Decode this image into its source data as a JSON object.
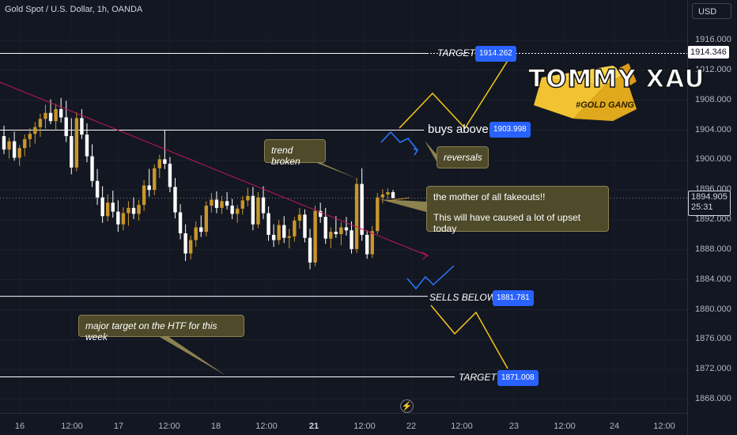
{
  "header": {
    "title": "Gold Spot / U.S. Dollar, 1h, OANDA",
    "currency": "USD"
  },
  "axes": {
    "y_ticks": [
      "1916.000",
      "1912.000",
      "1908.000",
      "1904.000",
      "1900.000",
      "1896.000",
      "1892.000",
      "1888.000",
      "1884.000",
      "1880.000",
      "1876.000",
      "1872.000",
      "1868.000"
    ],
    "x_ticks": [
      "16",
      "12:00",
      "17",
      "12:00",
      "18",
      "12:00",
      "21",
      "12:00",
      "22",
      "12:00",
      "23",
      "12:00",
      "24",
      "12:00"
    ],
    "bold_x_tick": "21"
  },
  "price_tags": {
    "level": "1914.346",
    "current": "1894.905",
    "countdown": "25:31"
  },
  "levels": {
    "target_top": {
      "label": "TARGET",
      "value": "1914.262"
    },
    "buys_above": {
      "label": "buys above",
      "value": "1903.998"
    },
    "sells_below": {
      "label": "SELLS BELOW",
      "value": "1881.781"
    },
    "target_bottom": {
      "label": "TARGET",
      "value": "1871.008"
    }
  },
  "notes": {
    "trend_broken": "trend broken",
    "reversals": "reversals",
    "fakeout_line1": "the mother of all fakeouts!!",
    "fakeout_line2": "This will have caused a lot of upset today",
    "major_target": "major target on the HTF for this week"
  },
  "logo": {
    "title": "TOMMY XAU",
    "subtitle": "#GOLD GANG"
  },
  "colors": {
    "up": "#c8962d",
    "down": "#ffffff",
    "trendline": "#c2185b",
    "forecast": "#f5c518",
    "reversal": "#2979ff",
    "badge": "#2962ff"
  },
  "icons": {
    "flash": "lightning-icon"
  },
  "chart_data": {
    "type": "candlestick",
    "symbol": "XAUUSD",
    "timeframe": "1h",
    "ylim": [
      1866,
      1918
    ],
    "candles": [
      [
        1903.2,
        1904.6,
        1900.8,
        1901.4
      ],
      [
        1901.4,
        1903.0,
        1900.2,
        1902.5
      ],
      [
        1902.5,
        1903.8,
        1899.9,
        1900.3
      ],
      [
        1900.3,
        1902.0,
        1899.2,
        1901.6
      ],
      [
        1901.6,
        1903.4,
        1900.5,
        1902.8
      ],
      [
        1902.8,
        1904.3,
        1901.7,
        1903.5
      ],
      [
        1903.5,
        1905.1,
        1902.2,
        1904.4
      ],
      [
        1904.4,
        1906.2,
        1903.1,
        1905.5
      ],
      [
        1905.5,
        1907.4,
        1904.2,
        1906.3
      ],
      [
        1906.3,
        1908.1,
        1904.8,
        1905.2
      ],
      [
        1905.2,
        1907.5,
        1903.9,
        1906.8
      ],
      [
        1906.8,
        1908.3,
        1905.0,
        1905.7
      ],
      [
        1905.7,
        1907.9,
        1902.4,
        1903.2
      ],
      [
        1903.2,
        1905.6,
        1898.1,
        1899.0
      ],
      [
        1899.0,
        1906.4,
        1898.5,
        1905.6
      ],
      [
        1905.6,
        1906.8,
        1902.8,
        1903.4
      ],
      [
        1903.4,
        1904.9,
        1899.7,
        1900.5
      ],
      [
        1900.5,
        1902.1,
        1896.4,
        1897.2
      ],
      [
        1897.2,
        1898.8,
        1894.0,
        1895.0
      ],
      [
        1895.0,
        1896.5,
        1891.6,
        1892.5
      ],
      [
        1892.5,
        1895.4,
        1891.8,
        1894.3
      ],
      [
        1894.3,
        1895.9,
        1892.3,
        1893.1
      ],
      [
        1893.1,
        1894.6,
        1890.4,
        1891.4
      ],
      [
        1891.4,
        1893.7,
        1890.6,
        1892.9
      ],
      [
        1892.9,
        1894.5,
        1891.2,
        1893.6
      ],
      [
        1893.6,
        1895.0,
        1892.1,
        1892.8
      ],
      [
        1892.8,
        1894.7,
        1891.9,
        1894.0
      ],
      [
        1894.0,
        1897.3,
        1893.2,
        1896.6
      ],
      [
        1896.6,
        1898.8,
        1895.1,
        1896.0
      ],
      [
        1896.0,
        1899.4,
        1895.3,
        1898.9
      ],
      [
        1898.9,
        1900.7,
        1897.6,
        1900.1
      ],
      [
        1900.1,
        1904.0,
        1898.8,
        1899.5
      ],
      [
        1899.5,
        1900.4,
        1895.7,
        1896.4
      ],
      [
        1896.4,
        1897.6,
        1892.2,
        1893.0
      ],
      [
        1893.0,
        1894.1,
        1889.4,
        1890.2
      ],
      [
        1890.2,
        1891.4,
        1886.5,
        1887.5
      ],
      [
        1887.5,
        1889.9,
        1886.7,
        1889.3
      ],
      [
        1889.3,
        1891.8,
        1888.4,
        1891.0
      ],
      [
        1891.0,
        1892.6,
        1889.7,
        1890.4
      ],
      [
        1890.4,
        1894.5,
        1889.8,
        1893.9
      ],
      [
        1893.9,
        1895.6,
        1893.0,
        1894.7
      ],
      [
        1894.7,
        1895.8,
        1892.9,
        1893.6
      ],
      [
        1893.6,
        1895.2,
        1892.8,
        1894.5
      ],
      [
        1894.5,
        1895.7,
        1893.4,
        1893.9
      ],
      [
        1893.9,
        1894.8,
        1892.1,
        1892.8
      ],
      [
        1892.8,
        1894.0,
        1891.6,
        1893.5
      ],
      [
        1893.5,
        1895.2,
        1892.7,
        1894.6
      ],
      [
        1894.6,
        1896.3,
        1893.8,
        1895.2
      ],
      [
        1895.2,
        1896.4,
        1890.6,
        1891.4
      ],
      [
        1891.4,
        1895.7,
        1890.9,
        1895.0
      ],
      [
        1895.0,
        1896.5,
        1892.1,
        1892.9
      ],
      [
        1892.9,
        1893.8,
        1889.2,
        1890.0
      ],
      [
        1890.0,
        1891.4,
        1888.4,
        1889.3
      ],
      [
        1889.3,
        1892.0,
        1888.7,
        1891.3
      ],
      [
        1891.3,
        1892.5,
        1888.9,
        1889.6
      ],
      [
        1889.6,
        1890.8,
        1888.2,
        1889.8
      ],
      [
        1889.8,
        1892.4,
        1889.1,
        1891.9
      ],
      [
        1891.9,
        1893.6,
        1890.8,
        1892.7
      ],
      [
        1892.7,
        1893.4,
        1889.0,
        1889.6
      ],
      [
        1889.6,
        1890.8,
        1885.4,
        1886.3
      ],
      [
        1886.3,
        1893.9,
        1885.8,
        1893.2
      ],
      [
        1893.2,
        1894.3,
        1891.6,
        1892.4
      ],
      [
        1892.4,
        1893.6,
        1888.8,
        1889.5
      ],
      [
        1889.5,
        1891.0,
        1888.2,
        1890.4
      ],
      [
        1890.4,
        1892.5,
        1889.6,
        1890.1
      ],
      [
        1890.1,
        1891.7,
        1888.6,
        1891.0
      ],
      [
        1891.0,
        1892.4,
        1889.9,
        1890.6
      ],
      [
        1890.6,
        1891.8,
        1887.5,
        1888.1
      ],
      [
        1888.1,
        1897.6,
        1887.6,
        1896.8
      ],
      [
        1896.8,
        1898.9,
        1889.2,
        1890.0
      ],
      [
        1890.0,
        1890.6,
        1886.8,
        1887.4
      ],
      [
        1887.4,
        1891.2,
        1886.9,
        1890.5
      ],
      [
        1890.5,
        1895.6,
        1890.1,
        1895.0
      ],
      [
        1895.0,
        1896.1,
        1894.2,
        1895.4
      ],
      [
        1895.4,
        1896.2,
        1894.8,
        1895.7
      ],
      [
        1895.7,
        1896.0,
        1894.9,
        1894.9
      ]
    ],
    "annotations": {
      "target_top": 1914.262,
      "buys_above": 1903.998,
      "sells_below": 1881.781,
      "target_bottom": 1871.008
    }
  }
}
